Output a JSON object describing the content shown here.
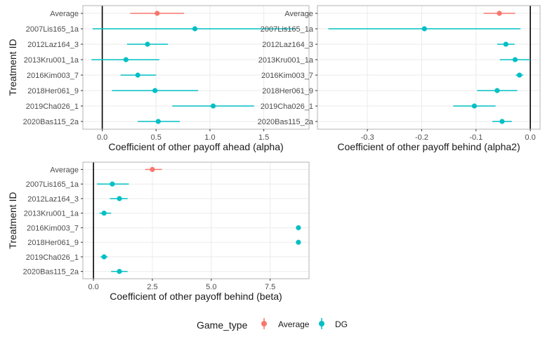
{
  "chart_data": [
    {
      "type": "errorbar-dot",
      "categories": [
        "Average",
        "2007Lis165_1a",
        "2012Laz164_3",
        "2013Kru001_1a",
        "2016Kim003_7",
        "2018Her061_9",
        "2019Cha026_1",
        "2020Bas115_2a"
      ],
      "game_type": [
        "Average",
        "DG",
        "DG",
        "DG",
        "DG",
        "DG",
        "DG",
        "DG"
      ],
      "estimates": [
        0.51,
        0.86,
        0.42,
        0.22,
        0.33,
        0.49,
        1.03,
        0.52
      ],
      "ci_low": [
        0.26,
        -0.09,
        0.23,
        -0.1,
        0.17,
        0.09,
        0.65,
        0.33
      ],
      "ci_high": [
        0.76,
        1.8,
        0.61,
        0.53,
        0.5,
        0.89,
        1.41,
        0.72
      ],
      "xlabel": "Coefficient of other payoff ahead (alpha)",
      "ylabel": "Treatment ID",
      "xticks": [
        0,
        0.5,
        1.0,
        1.5
      ],
      "xtick_labels": [
        "0.0",
        "0.5",
        "1.0",
        "1.5"
      ],
      "xlim": [
        -0.18,
        1.92
      ],
      "vline": 0
    },
    {
      "type": "errorbar-dot",
      "categories": [
        "Average",
        "2007Lis165_1a",
        "2012Laz164_3",
        "2013Kru001_1a",
        "2016Kim003_7",
        "2018Her061_9",
        "2019Cha026_1",
        "2020Bas115_2a"
      ],
      "game_type": [
        "Average",
        "DG",
        "DG",
        "DG",
        "DG",
        "DG",
        "DG",
        "DG"
      ],
      "estimates": [
        -0.057,
        -0.195,
        -0.045,
        -0.028,
        -0.02,
        -0.061,
        -0.103,
        -0.052
      ],
      "ci_low": [
        -0.086,
        -0.372,
        -0.061,
        -0.056,
        -0.027,
        -0.098,
        -0.142,
        -0.07
      ],
      "ci_high": [
        -0.028,
        -0.018,
        -0.029,
        0.0,
        -0.013,
        -0.024,
        -0.064,
        -0.034
      ],
      "xlabel": "Coefficient of other payoff behind (alpha2)",
      "ylabel": "",
      "xticks": [
        -0.3,
        -0.2,
        -0.1,
        0.0
      ],
      "xtick_labels": [
        "-0.3",
        "-0.2",
        "-0.1",
        "0.0"
      ],
      "xlim": [
        -0.392,
        0.018
      ],
      "vline": 0
    },
    {
      "type": "errorbar-dot",
      "categories": [
        "Average",
        "2007Lis165_1a",
        "2012Laz164_3",
        "2013Kru001_1a",
        "2016Kim003_7",
        "2018Her061_9",
        "2019Cha026_1",
        "2020Bas115_2a"
      ],
      "game_type": [
        "Average",
        "DG",
        "DG",
        "DG",
        "DG",
        "DG",
        "DG",
        "DG"
      ],
      "estimates": [
        2.5,
        0.8,
        1.1,
        0.45,
        8.7,
        8.7,
        0.45,
        1.1
      ],
      "ci_low": [
        2.2,
        0.15,
        0.7,
        0.25,
        8.7,
        8.7,
        0.3,
        0.75
      ],
      "ci_high": [
        2.9,
        1.5,
        1.45,
        0.75,
        8.7,
        8.7,
        0.6,
        1.45
      ],
      "xlabel": "Coefficient of other payoff behind (beta)",
      "ylabel": "Treatment ID",
      "xticks": [
        0,
        2.5,
        5.0,
        7.5
      ],
      "xtick_labels": [
        "0.0",
        "2.5",
        "5.0",
        "7.5"
      ],
      "xlim": [
        -0.45,
        9.15
      ],
      "vline": 0
    }
  ],
  "legend": {
    "title": "Game_type",
    "entries": [
      {
        "label": "Average",
        "color": "#F8766D"
      },
      {
        "label": "DG",
        "color": "#00BFC4"
      }
    ]
  },
  "colors": {
    "Average": "#F8766D",
    "DG": "#00BFC4",
    "panel_border": "#b3b3b3",
    "grid": "#ebebeb"
  }
}
